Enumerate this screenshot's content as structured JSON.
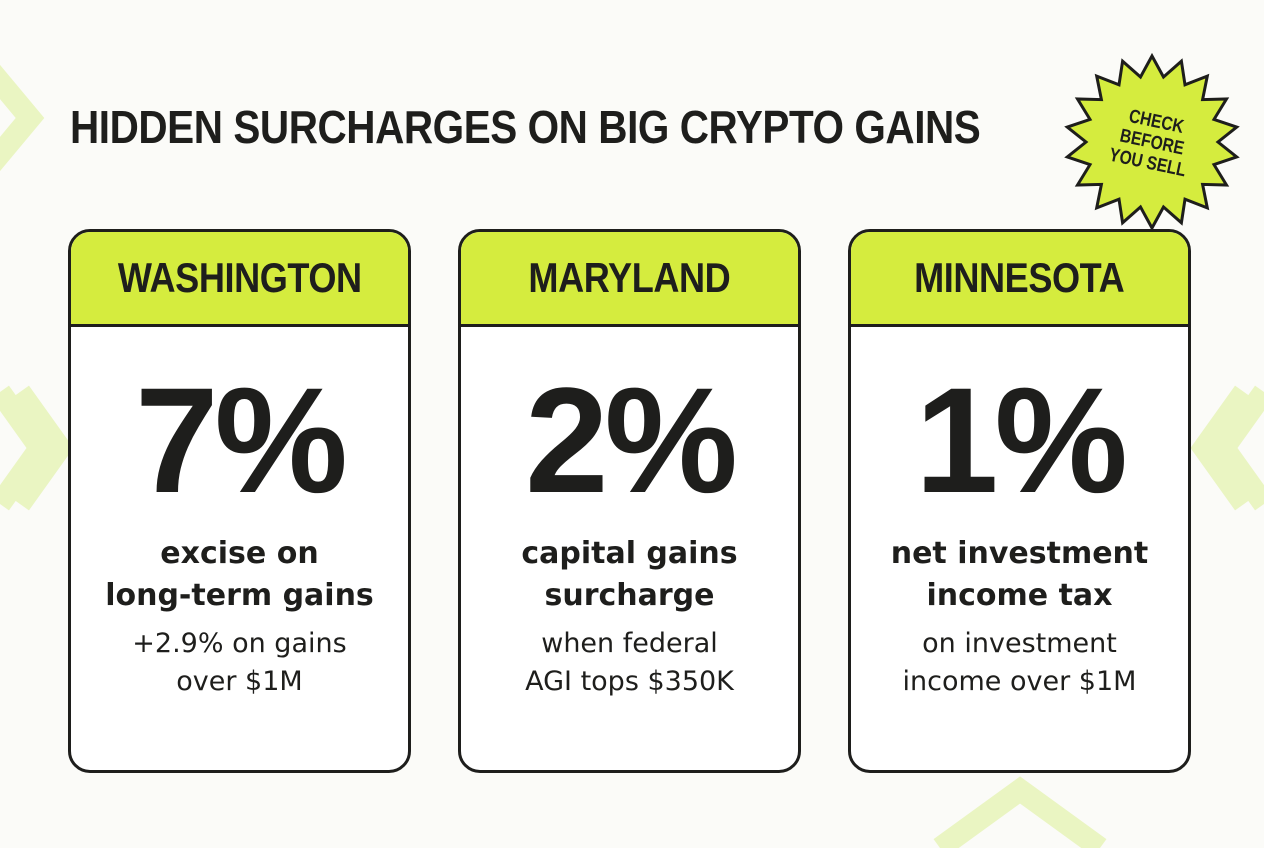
{
  "headline": "HIDDEN SURCHARGES ON BIG CRYPTO GAINS",
  "badge": {
    "text": "CHECK BEFORE YOU SELL"
  },
  "colors": {
    "accent": "#d5ec3e",
    "ink": "#1e1e1c",
    "background": "#fbfbf8",
    "chevron": "#eaf5c2"
  },
  "cards": [
    {
      "state": "WASHINGTON",
      "rate": "7%",
      "description_lines": [
        "excise on",
        "long-term gains"
      ],
      "note_lines": [
        "+2.9% on gains",
        "over $1M"
      ]
    },
    {
      "state": "MARYLAND",
      "rate": "2%",
      "description_lines": [
        "capital gains",
        "surcharge"
      ],
      "note_lines": [
        "when federal",
        "AGI tops $350K"
      ]
    },
    {
      "state": "MINNESOTA",
      "rate": "1%",
      "description_lines": [
        "net investment",
        "income tax"
      ],
      "note_lines": [
        "on investment",
        "income over $1M"
      ]
    }
  ]
}
